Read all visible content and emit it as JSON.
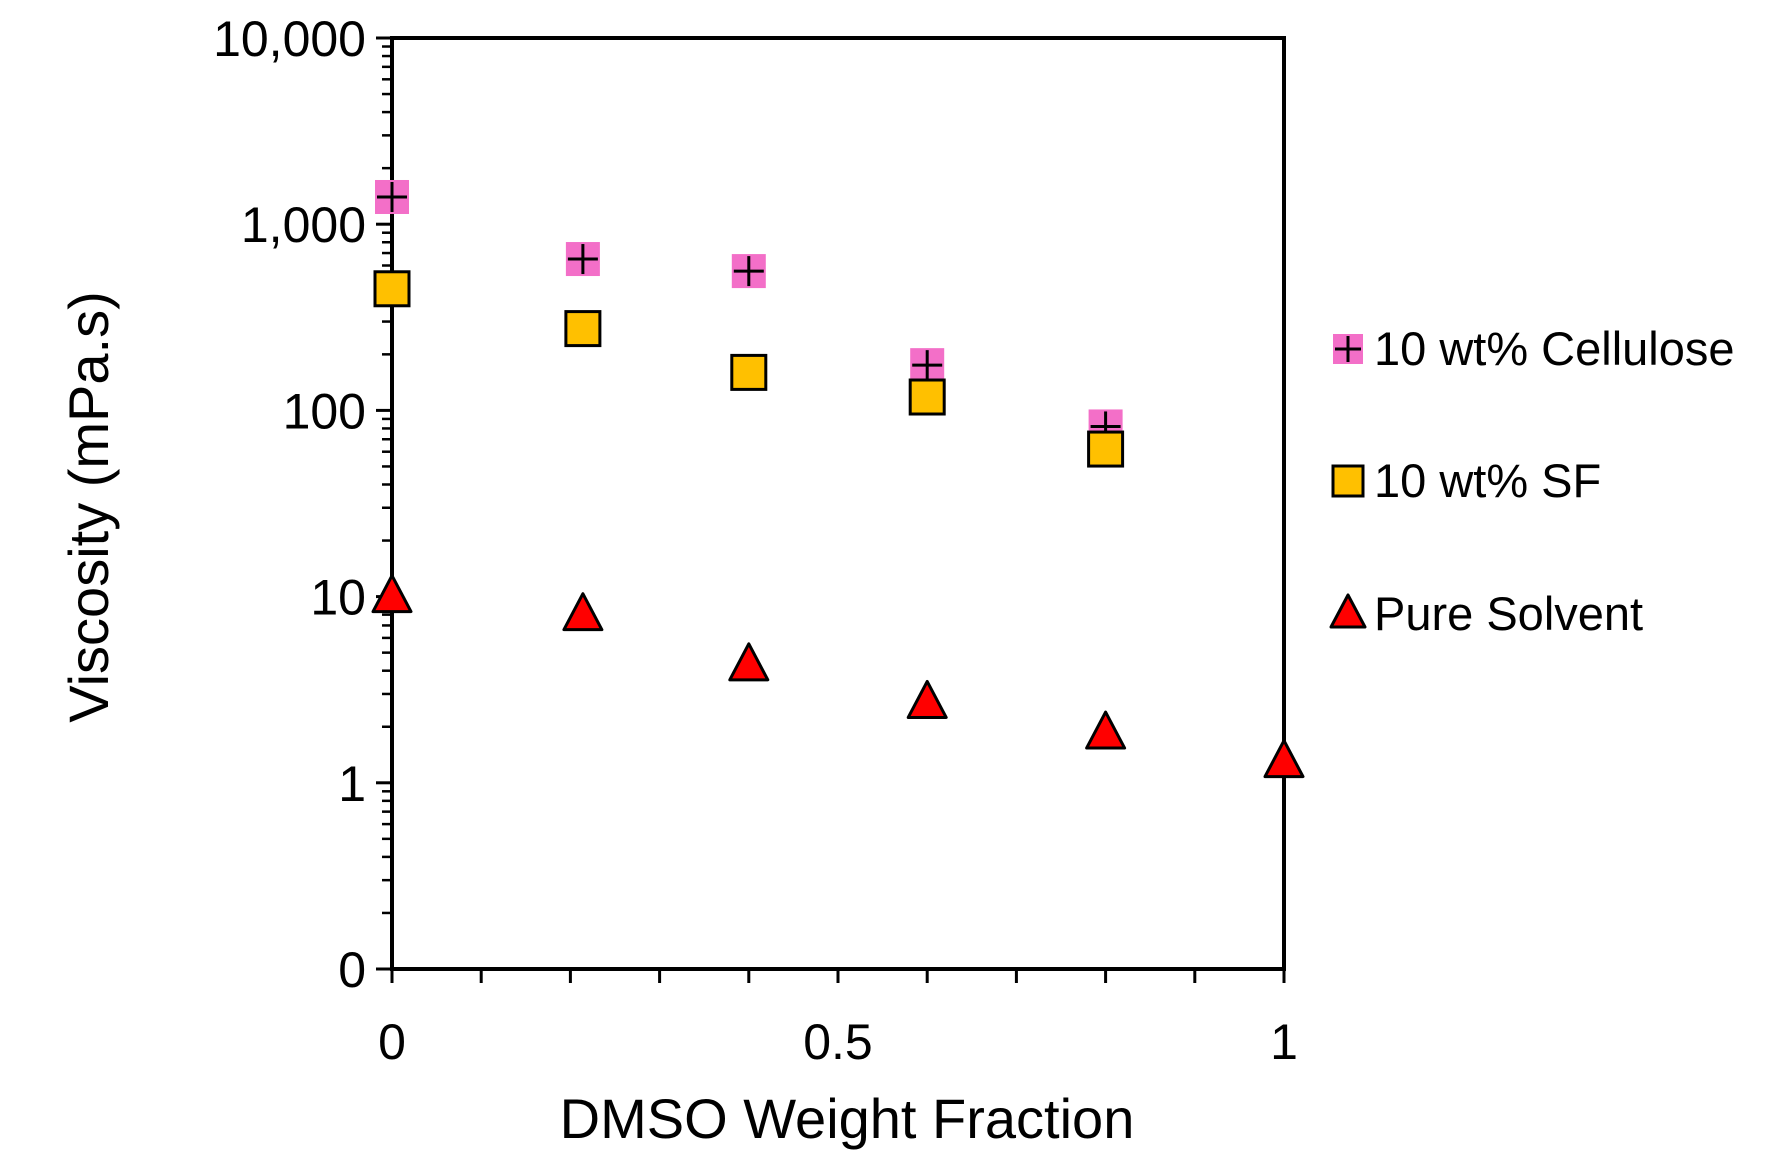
{
  "chart_data": {
    "type": "scatter",
    "title": "",
    "xlabel": "DMSO Weight Fraction",
    "ylabel": "Viscosity (mPa.s)",
    "xlim": [
      0,
      1
    ],
    "x_ticks": [
      0,
      0.5,
      1
    ],
    "x_tick_labels": [
      "0",
      "0.5",
      "1"
    ],
    "yscale": "log",
    "y_ticks": [
      0.1,
      1,
      10,
      100,
      1000,
      10000
    ],
    "y_tick_labels": [
      "0",
      "1",
      "10",
      "100",
      "1,000",
      "10,000"
    ],
    "ylim": [
      0.1,
      10000
    ],
    "grid": false,
    "legend_position": "right",
    "series": [
      {
        "name": "10 wt% Cellulose",
        "marker": "plus-square",
        "color": "#f36fc8",
        "stroke": "#000000",
        "x": [
          0,
          0.214,
          0.4,
          0.6,
          0.8
        ],
        "y": [
          1400,
          650,
          560,
          175,
          82
        ]
      },
      {
        "name": "10 wt% SF",
        "marker": "square",
        "color": "#ffc000",
        "stroke": "#000000",
        "x": [
          0,
          0.214,
          0.4,
          0.6,
          0.8
        ],
        "y": [
          450,
          275,
          160,
          118,
          62
        ]
      },
      {
        "name": "Pure Solvent",
        "marker": "triangle",
        "color": "#ff0000",
        "stroke": "#000000",
        "x": [
          0,
          0.214,
          0.4,
          0.6,
          0.8,
          1
        ],
        "y": [
          10,
          8,
          4.3,
          2.7,
          1.85,
          1.3
        ]
      }
    ]
  }
}
